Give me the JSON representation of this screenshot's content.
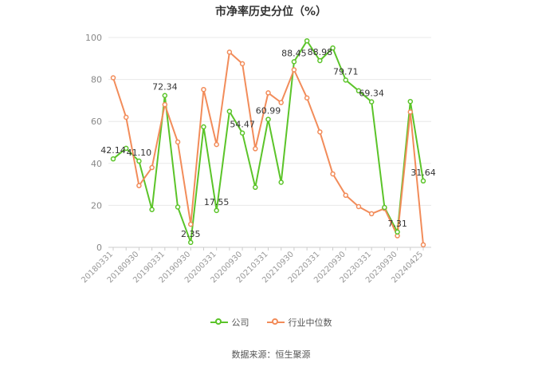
{
  "chart_data": {
    "type": "line",
    "title": "市净率历史分位（%）",
    "xlabel": "",
    "ylabel": "",
    "ylim": [
      0,
      100
    ],
    "yticks": [
      0,
      20,
      40,
      60,
      80,
      100
    ],
    "grid": true,
    "legend_position": "bottom",
    "x": [
      "20180331",
      "20180630",
      "20180930",
      "20181231",
      "20190331",
      "20190630",
      "20190930",
      "20191231",
      "20200331",
      "20200630",
      "20200930",
      "20201231",
      "20210331",
      "20210630",
      "20210930",
      "20211231",
      "20220331",
      "20220630",
      "20220930",
      "20221231",
      "20230331",
      "20230630",
      "20230930",
      "20231231",
      "20240425"
    ],
    "x_tick_labels": [
      "20180331",
      "20180930",
      "20190331",
      "20190930",
      "20200331",
      "20200930",
      "20210331",
      "20210930",
      "20220331",
      "20220930",
      "20230331",
      "20230930",
      "20240425"
    ],
    "series": [
      {
        "name": "公司",
        "color": "#5bc429",
        "values": [
          42.14,
          47.2,
          41.1,
          18.0,
          72.34,
          19.2,
          2.35,
          57.4,
          17.55,
          64.8,
          54.47,
          28.6,
          60.99,
          31.0,
          88.45,
          98.4,
          88.98,
          95.0,
          79.71,
          74.6,
          69.34,
          19.0,
          7.31,
          69.5,
          31.64
        ],
        "labels": {
          "0": "42.14",
          "2": "41.10",
          "4": "72.34",
          "6": "2.35",
          "8": "17.55",
          "10": "54.47",
          "12": "60.99",
          "14": "88.45",
          "16": "88.98",
          "18": "79.71",
          "20": "69.34",
          "22": "7.31",
          "24": "31.64"
        }
      },
      {
        "name": "行业中位数",
        "color": "#f28c5a",
        "values": [
          80.8,
          62.0,
          29.4,
          38.0,
          68.0,
          50.2,
          11.0,
          75.2,
          49.0,
          93.0,
          87.5,
          47.0,
          73.6,
          69.0,
          84.6,
          71.2,
          55.0,
          35.0,
          24.8,
          19.4,
          16.0,
          18.5,
          5.5,
          64.5,
          1.2
        ]
      }
    ]
  },
  "source": "数据来源：恒生聚源"
}
